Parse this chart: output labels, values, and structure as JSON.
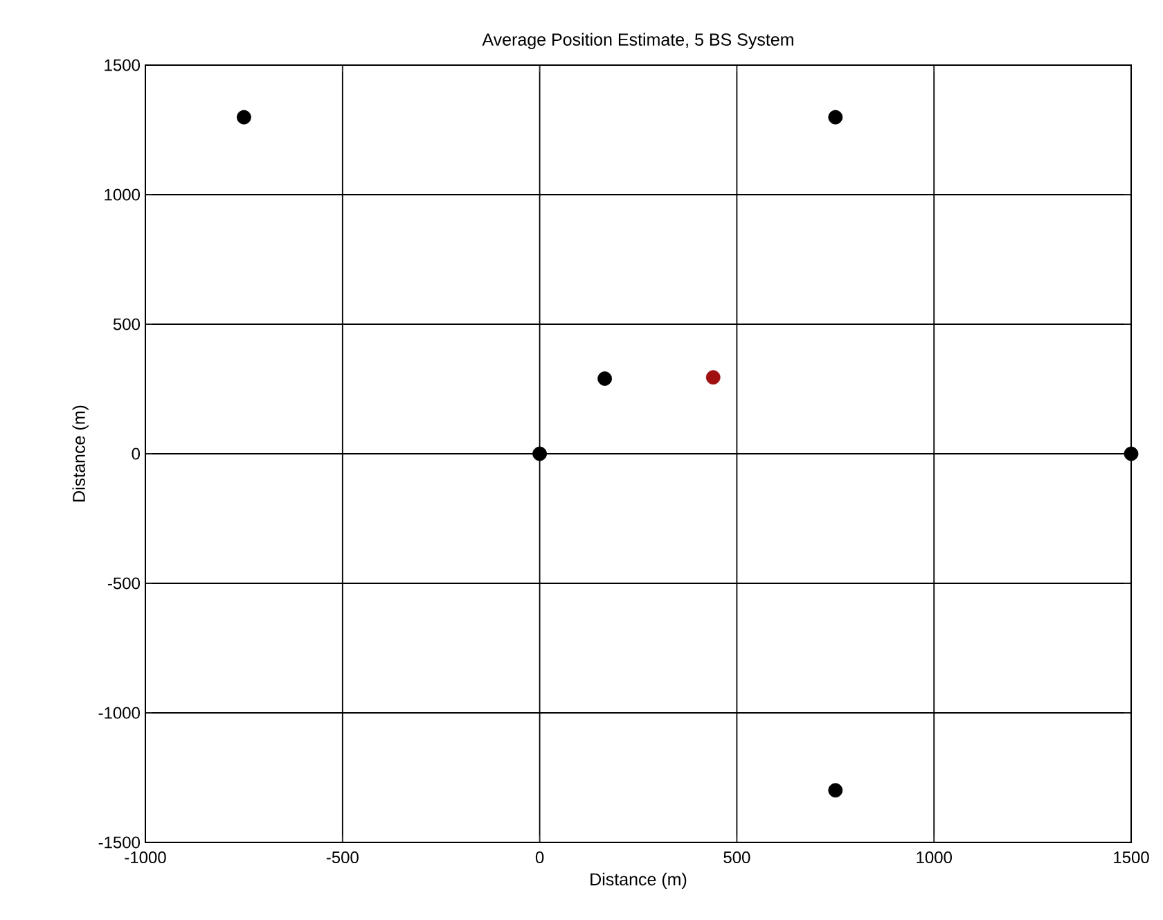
{
  "chart_data": {
    "type": "scatter",
    "title": "Average Position Estimate, 5 BS System",
    "xlabel": "Distance (m)",
    "ylabel": "Distance (m)",
    "xlim": [
      -1000,
      1500
    ],
    "ylim": [
      -1500,
      1500
    ],
    "xticks": [
      -1000,
      -500,
      0,
      500,
      1000,
      1500
    ],
    "yticks": [
      -1500,
      -1000,
      -500,
      0,
      500,
      1000,
      1500
    ],
    "grid": true,
    "marker": "circle",
    "series": [
      {
        "color": "#000000",
        "x": [
          -750,
          750,
          0,
          1500,
          750,
          165
        ],
        "values": [
          1299,
          1299,
          0,
          0,
          -1299,
          290
        ]
      },
      {
        "color": "#a01010",
        "x": [
          440
        ],
        "values": [
          295
        ]
      }
    ]
  }
}
